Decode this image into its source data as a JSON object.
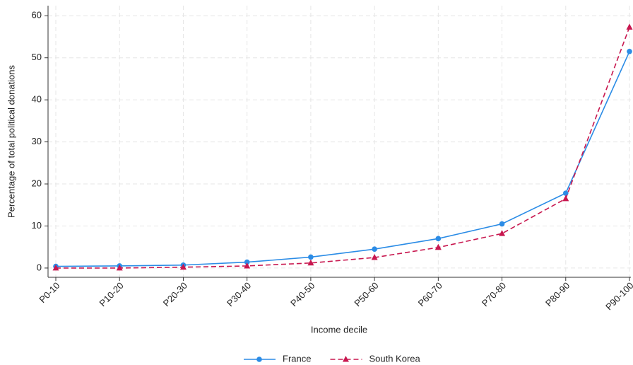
{
  "chart_data": {
    "type": "line",
    "x_label": "Income decile",
    "y_label": "Percentage of total political donations",
    "categories": [
      "P0-10",
      "P10-20",
      "P20-30",
      "P30-40",
      "P40-50",
      "P50-60",
      "P60-70",
      "P70-80",
      "P80-90",
      "P90-100"
    ],
    "series": [
      {
        "name": "France",
        "color": "#2b8ce6",
        "marker": "circle",
        "dash": false,
        "values": [
          0.4,
          0.5,
          0.7,
          1.4,
          2.6,
          4.5,
          7.0,
          10.5,
          17.8,
          51.5
        ]
      },
      {
        "name": "South Korea",
        "color": "#c8174f",
        "marker": "triangle",
        "dash": true,
        "values": [
          0.0,
          0.0,
          0.2,
          0.5,
          1.2,
          2.5,
          4.9,
          8.2,
          16.5,
          57.3
        ]
      }
    ],
    "ylim": [
      -2.2,
      62.4
    ],
    "yticks": [
      0,
      10,
      20,
      30,
      40,
      50,
      60
    ],
    "grid": true,
    "legend": "bottom"
  }
}
